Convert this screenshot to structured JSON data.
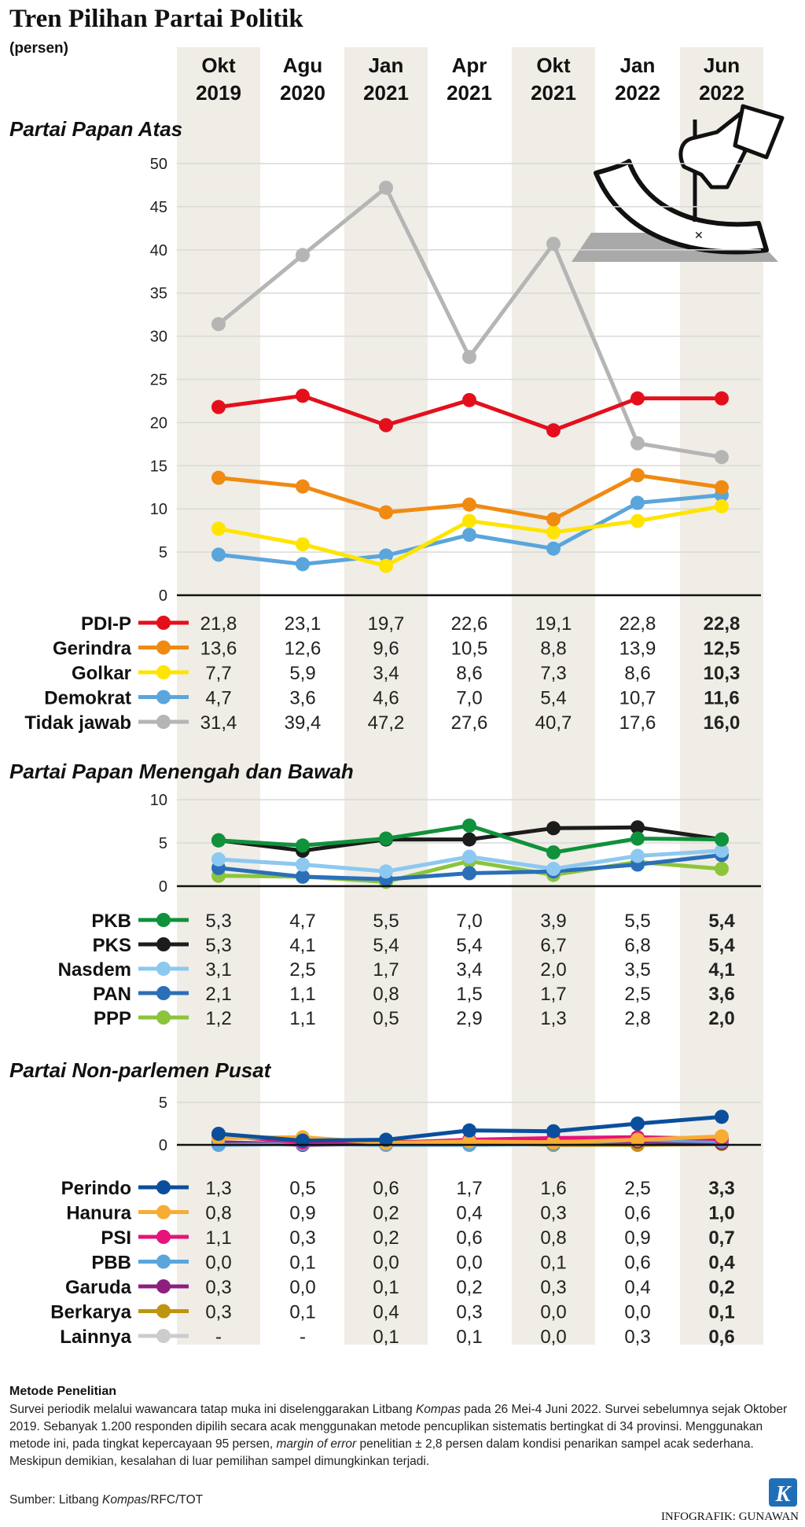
{
  "title": "Tren Pilihan Partai Politik",
  "subtitle": "(persen)",
  "colors": {
    "band": "#efede6",
    "grid": "#d9d9d9"
  },
  "chart_data": {
    "type": "line",
    "x": [
      "Okt 2019",
      "Agu 2020",
      "Jan 2021",
      "Apr 2021",
      "Okt 2021",
      "Jan 2022",
      "Jun 2022"
    ],
    "x_lines": [
      [
        "Okt",
        "2019"
      ],
      [
        "Agu",
        "2020"
      ],
      [
        "Jan",
        "2021"
      ],
      [
        "Apr",
        "2021"
      ],
      [
        "Okt",
        "2021"
      ],
      [
        "Jan",
        "2022"
      ],
      [
        "Jun",
        "2022"
      ]
    ],
    "panels": [
      {
        "title": "Partai Papan Atas",
        "ylim": [
          0,
          50
        ],
        "yticks": [
          0,
          5,
          10,
          15,
          20,
          25,
          30,
          35,
          40,
          45,
          50
        ],
        "series": [
          {
            "name": "PDI-P",
            "color": "#e3101c",
            "values": [
              21.8,
              23.1,
              19.7,
              22.6,
              19.1,
              22.8,
              22.8
            ],
            "labels": [
              "21,8",
              "23,1",
              "19,7",
              "22,6",
              "19,1",
              "22,8",
              "22,8"
            ]
          },
          {
            "name": "Gerindra",
            "color": "#f08a12",
            "values": [
              13.6,
              12.6,
              9.6,
              10.5,
              8.8,
              13.9,
              12.5
            ],
            "labels": [
              "13,6",
              "12,6",
              "9,6",
              "10,5",
              "8,8",
              "13,9",
              "12,5"
            ]
          },
          {
            "name": "Golkar",
            "color": "#ffe400",
            "values": [
              7.7,
              5.9,
              3.4,
              8.6,
              7.3,
              8.6,
              10.3
            ],
            "labels": [
              "7,7",
              "5,9",
              "3,4",
              "8,6",
              "7,3",
              "8,6",
              "10,3"
            ]
          },
          {
            "name": "Demokrat",
            "color": "#5aa5dc",
            "values": [
              4.7,
              3.6,
              4.6,
              7.0,
              5.4,
              10.7,
              11.6
            ],
            "labels": [
              "4,7",
              "3,6",
              "4,6",
              "7,0",
              "5,4",
              "10,7",
              "11,6"
            ]
          },
          {
            "name": "Tidak jawab",
            "color": "#b5b5b5",
            "values": [
              31.4,
              39.4,
              47.2,
              27.6,
              40.7,
              17.6,
              16.0
            ],
            "labels": [
              "31,4",
              "39,4",
              "47,2",
              "27,6",
              "40,7",
              "17,6",
              "16,0"
            ]
          }
        ]
      },
      {
        "title": "Partai Papan Menengah dan Bawah",
        "ylim": [
          0,
          10
        ],
        "yticks": [
          0,
          5,
          10
        ],
        "series": [
          {
            "name": "PKB",
            "color": "#10913b",
            "values": [
              5.3,
              4.7,
              5.5,
              7.0,
              3.9,
              5.5,
              5.4
            ],
            "labels": [
              "5,3",
              "4,7",
              "5,5",
              "7,0",
              "3,9",
              "5,5",
              "5,4"
            ]
          },
          {
            "name": "PKS",
            "color": "#1c1c1c",
            "values": [
              5.3,
              4.1,
              5.4,
              5.4,
              6.7,
              6.8,
              5.4
            ],
            "labels": [
              "5,3",
              "4,1",
              "5,4",
              "5,4",
              "6,7",
              "6,8",
              "5,4"
            ]
          },
          {
            "name": "Nasdem",
            "color": "#8dc8f0",
            "values": [
              3.1,
              2.5,
              1.7,
              3.4,
              2.0,
              3.5,
              4.1
            ],
            "labels": [
              "3,1",
              "2,5",
              "1,7",
              "3,4",
              "2,0",
              "3,5",
              "4,1"
            ]
          },
          {
            "name": "PAN",
            "color": "#2a6fb8",
            "values": [
              2.1,
              1.1,
              0.8,
              1.5,
              1.7,
              2.5,
              3.6
            ],
            "labels": [
              "2,1",
              "1,1",
              "0,8",
              "1,5",
              "1,7",
              "2,5",
              "3,6"
            ]
          },
          {
            "name": "PPP",
            "color": "#8cc43a",
            "values": [
              1.2,
              1.1,
              0.5,
              2.9,
              1.3,
              2.8,
              2.0
            ],
            "labels": [
              "1,2",
              "1,1",
              "0,5",
              "2,9",
              "1,3",
              "2,8",
              "2,0"
            ]
          }
        ]
      },
      {
        "title": "Partai Non-parlemen Pusat",
        "ylim": [
          0,
          5
        ],
        "yticks": [
          0,
          5
        ],
        "series": [
          {
            "name": "Perindo",
            "color": "#0b4f9c",
            "values": [
              1.3,
              0.5,
              0.6,
              1.7,
              1.6,
              2.5,
              3.3
            ],
            "labels": [
              "1,3",
              "0,5",
              "0,6",
              "1,7",
              "1,6",
              "2,5",
              "3,3"
            ]
          },
          {
            "name": "Hanura",
            "color": "#f7ad33",
            "values": [
              0.8,
              0.9,
              0.2,
              0.4,
              0.3,
              0.6,
              1.0
            ],
            "labels": [
              "0,8",
              "0,9",
              "0,2",
              "0,4",
              "0,3",
              "0,6",
              "1,0"
            ]
          },
          {
            "name": "PSI",
            "color": "#e5137a",
            "values": [
              1.1,
              0.3,
              0.2,
              0.6,
              0.8,
              0.9,
              0.7
            ],
            "labels": [
              "1,1",
              "0,3",
              "0,2",
              "0,6",
              "0,8",
              "0,9",
              "0,7"
            ]
          },
          {
            "name": "PBB",
            "color": "#5aa5dc",
            "values": [
              0.0,
              0.1,
              0.0,
              0.0,
              0.1,
              0.6,
              0.4
            ],
            "labels": [
              "0,0",
              "0,1",
              "0,0",
              "0,0",
              "0,1",
              "0,6",
              "0,4"
            ]
          },
          {
            "name": "Garuda",
            "color": "#8e1e80",
            "values": [
              0.3,
              0.0,
              0.1,
              0.2,
              0.3,
              0.4,
              0.2
            ],
            "labels": [
              "0,3",
              "0,0",
              "0,1",
              "0,2",
              "0,3",
              "0,4",
              "0,2"
            ]
          },
          {
            "name": "Berkarya",
            "color": "#bf9410",
            "values": [
              0.3,
              0.1,
              0.4,
              0.3,
              0.0,
              0.0,
              0.1
            ],
            "labels": [
              "0,3",
              "0,1",
              "0,4",
              "0,3",
              "0,0",
              "0,0",
              "0,1"
            ]
          },
          {
            "name": "Lainnya",
            "color": "#cccccc",
            "values": [
              null,
              null,
              0.1,
              0.1,
              0.0,
              0.3,
              0.6
            ],
            "labels": [
              "-",
              "-",
              "0,1",
              "0,1",
              "0,0",
              "0,3",
              "0,6"
            ]
          }
        ]
      }
    ]
  },
  "footer": {
    "method_title": "Metode Penelitian",
    "method_lines": [
      [
        {
          "t": "Survei periodik melalui wawancara tatap muka ini diselenggarakan Litbang "
        },
        {
          "t": "Kompas",
          "i": true
        },
        {
          "t": " pada 26 Mei-4 Juni 2022. Survei sebelumnya sejak Oktober"
        }
      ],
      [
        {
          "t": "2019. Sebanyak 1.200 responden dipilih secara acak menggunakan metode pencuplikan sistematis bertingkat di 34 provinsi. Menggunakan"
        }
      ],
      [
        {
          "t": "metode ini, pada tingkat kepercayaan 95 persen, "
        },
        {
          "t": "margin of error",
          "i": true
        },
        {
          "t": " penelitian ± 2,8 persen dalam kondisi penarikan sampel acak sederhana."
        }
      ],
      [
        {
          "t": "Meskipun demikian, kesalahan di luar pemilihan sampel dimungkinkan terjadi."
        }
      ]
    ],
    "source": [
      {
        "t": "Sumber: Litbang "
      },
      {
        "t": "Kompas",
        "i": true
      },
      {
        "t": "/RFC/TOT"
      }
    ],
    "credit": "INFOGRAFIK: GUNAWAN",
    "logo_letter": "K"
  }
}
